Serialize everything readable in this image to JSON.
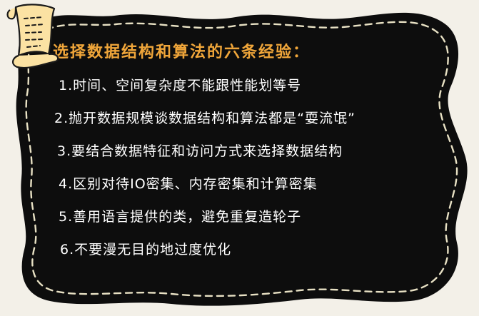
{
  "title": "选择数据结构和算法的六条经验：",
  "items": [
    "1.时间、空间复杂度不能跟性能划等号",
    "2.抛开数据规模谈数据结构和算法都是“耍流氓”",
    "3.要结合数据特征和访问方式来选择数据结构",
    "4.区别对待IO密集、内存密集和计算密集",
    "5.善用语言提供的类，避免重复造轮子",
    "6.不要漫无目的地过度优化"
  ],
  "colors": {
    "background": "#f3f0e8",
    "board": "#0d0d0d",
    "stitch": "#e8e1c4",
    "title": "#f0a63a",
    "text": "#ffffff",
    "scroll_fill": "#fbe2a3",
    "scroll_outline": "#1a1a1a"
  },
  "decor": {
    "board_shape": "wavy-chalkboard",
    "border_style": "dashed-stitch",
    "icon": "paper-scroll-icon"
  }
}
